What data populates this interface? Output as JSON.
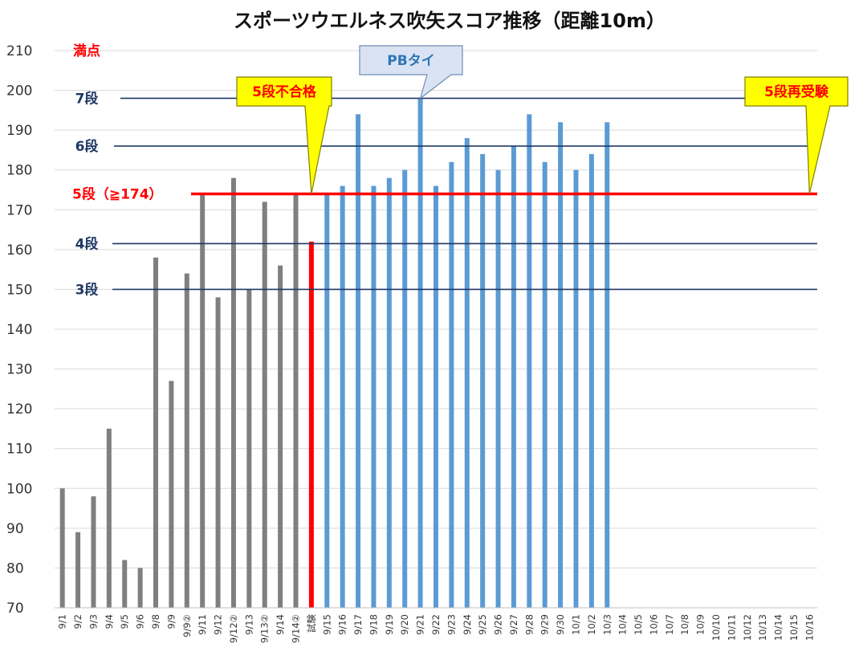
{
  "chart_data": {
    "type": "bar",
    "title": "スポーツウエルネス吹矢スコア推移（距離10m）",
    "ylim": [
      70,
      210
    ],
    "yticks": [
      70,
      80,
      90,
      100,
      110,
      120,
      130,
      140,
      150,
      160,
      170,
      180,
      190,
      200,
      210
    ],
    "grid": true,
    "categories": [
      "9/1",
      "9/2",
      "9/3",
      "9/4",
      "9/5",
      "9/6",
      "9/8",
      "9/9",
      "9/9②",
      "9/11",
      "9/12",
      "9/12②",
      "9/13",
      "9/13②",
      "9/14",
      "9/14②",
      "試験",
      "9/15",
      "9/16",
      "9/17",
      "9/18",
      "9/19",
      "9/20",
      "9/21",
      "9/22",
      "9/23",
      "9/24",
      "9/25",
      "9/26",
      "9/27",
      "9/28",
      "9/29",
      "9/30",
      "10/1",
      "10/2",
      "10/3",
      "10/4",
      "10/5",
      "10/6",
      "10/7",
      "10/8",
      "10/9",
      "10/10",
      "10/11",
      "10/12",
      "10/13",
      "10/14",
      "10/15",
      "10/16"
    ],
    "values": [
      100,
      89,
      98,
      115,
      82,
      80,
      158,
      127,
      154,
      174,
      148,
      178,
      150,
      172,
      156,
      174,
      162,
      174,
      176,
      194,
      176,
      178,
      180,
      198,
      176,
      182,
      188,
      184,
      180,
      186,
      194,
      182,
      192,
      180,
      184,
      192,
      null,
      null,
      null,
      null,
      null,
      null,
      null,
      null,
      null,
      null,
      null,
      null,
      null
    ],
    "bar_colors": {
      "before": "#7f7f7f",
      "exam": "#ff0000",
      "after": "#5b9bd5"
    },
    "exam_index": 16,
    "reference_lines": [
      {
        "label": "満点",
        "value": 210,
        "color": "#ff0000",
        "line": false
      },
      {
        "label": "7段",
        "value": 198,
        "color": "#1f3864",
        "line": true
      },
      {
        "label": "6段",
        "value": 186,
        "color": "#1f3864",
        "line": true
      },
      {
        "label": "5段（≧174）",
        "value": 174,
        "color": "#ff0000",
        "line": true,
        "thick": true
      },
      {
        "label": "4段",
        "value": 161.5,
        "color": "#1f3864",
        "line": true
      },
      {
        "label": "3段",
        "value": 150,
        "color": "#1f3864",
        "line": true
      }
    ],
    "annotations": [
      {
        "text": "5段不合格",
        "style": "yellow",
        "target_index": 16,
        "target_value": 174
      },
      {
        "text": "PBタイ",
        "style": "blue",
        "target_index": 23,
        "target_value": 198
      },
      {
        "text": "5段再受験",
        "style": "yellow",
        "target_index": 48,
        "target_value": 174
      }
    ]
  }
}
